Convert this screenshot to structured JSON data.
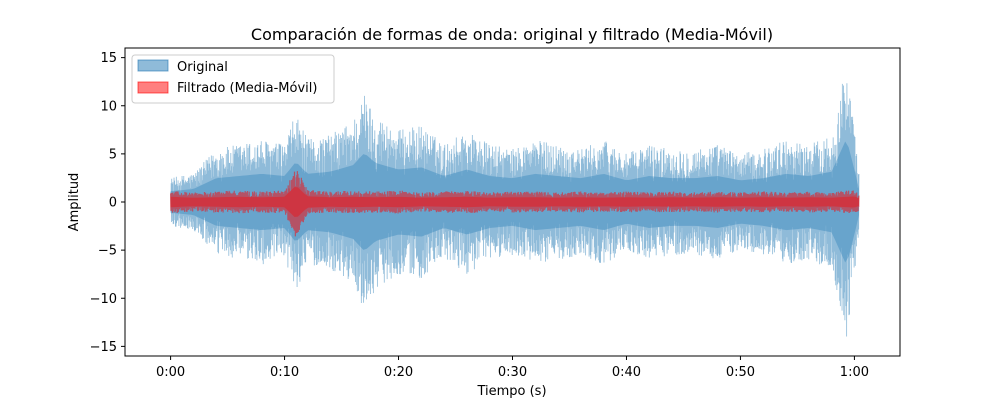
{
  "chart_data": {
    "type": "area",
    "title": "Comparación de formas de onda: original y filtrado (Media-Móvil)",
    "xlabel": "Tiempo (s)",
    "ylabel": "Amplitud",
    "xlim": [
      -4,
      64
    ],
    "ylim": [
      -16,
      16
    ],
    "x_ticks": [
      0,
      10,
      20,
      30,
      40,
      50,
      60
    ],
    "x_tick_labels": [
      "0:00",
      "0:10",
      "0:20",
      "0:30",
      "0:40",
      "0:50",
      "1:00"
    ],
    "y_ticks": [
      -15,
      -10,
      -5,
      0,
      5,
      10,
      15
    ],
    "y_tick_labels": [
      "−15",
      "−10",
      "−5",
      "0",
      "5",
      "10",
      "15"
    ],
    "grid": false,
    "legend_position": "top-left",
    "duration_s": 60.4,
    "series": [
      {
        "name": "Original",
        "color": "#1f77b4",
        "opacity": 0.5,
        "envelope_times_s": [
          0,
          2,
          4,
          6,
          8,
          10,
          11,
          12,
          14,
          16,
          17,
          18,
          20,
          22,
          24,
          26,
          28,
          30,
          32,
          34,
          36,
          38,
          40,
          42,
          44,
          46,
          48,
          50,
          52,
          54,
          56,
          58,
          59.3,
          60,
          60.4
        ],
        "envelope_amplitude": [
          2.5,
          3.0,
          5.5,
          6.0,
          6.5,
          6.0,
          9.3,
          6.5,
          7.0,
          8.5,
          11.3,
          9.0,
          7.5,
          8.0,
          6.0,
          7.5,
          6.0,
          5.5,
          6.5,
          6.0,
          5.5,
          6.5,
          5.0,
          6.0,
          5.5,
          5.5,
          6.0,
          5.0,
          5.5,
          6.5,
          6.0,
          7.0,
          14.6,
          7.5,
          3.0
        ]
      },
      {
        "name": "Filtrado (Media-Móvil)",
        "color": "#ff0000",
        "opacity": 0.5,
        "envelope_times_s": [
          0,
          2,
          4,
          6,
          8,
          10,
          11,
          12,
          14,
          16,
          18,
          20,
          22,
          24,
          26,
          28,
          30,
          32,
          34,
          36,
          38,
          40,
          42,
          44,
          46,
          48,
          50,
          52,
          54,
          56,
          58,
          60,
          60.4
        ],
        "envelope_amplitude": [
          1.2,
          1.0,
          1.1,
          1.2,
          1.1,
          1.2,
          3.8,
          1.3,
          1.1,
          1.2,
          1.1,
          1.2,
          1.0,
          1.1,
          1.2,
          1.0,
          1.1,
          1.1,
          1.0,
          1.1,
          1.0,
          1.1,
          1.0,
          1.1,
          1.0,
          1.1,
          1.0,
          1.1,
          1.0,
          1.1,
          1.0,
          1.3,
          0.9
        ]
      }
    ]
  }
}
